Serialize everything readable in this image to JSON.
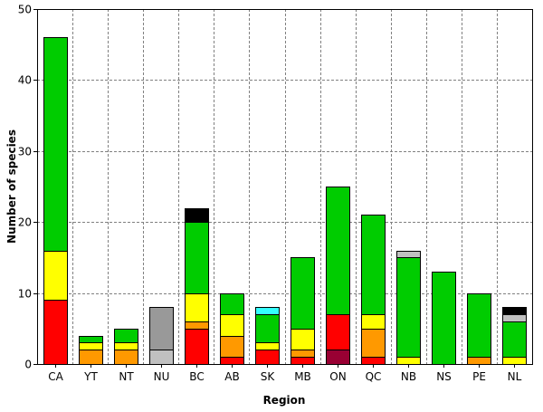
{
  "chart_data": {
    "type": "bar",
    "stacked": true,
    "title": "",
    "xlabel": "Region",
    "ylabel": "Number of species",
    "ylim": [
      0,
      50
    ],
    "yticks": [
      0,
      10,
      20,
      30,
      40,
      50
    ],
    "grid": true,
    "legend": "none",
    "categories": [
      "CA",
      "YT",
      "NT",
      "NU",
      "BC",
      "AB",
      "SK",
      "MB",
      "ON",
      "QC",
      "NB",
      "NS",
      "PE",
      "NL"
    ],
    "series": [
      {
        "color": "#990033",
        "values": [
          0,
          0,
          0,
          0,
          0,
          0,
          0,
          0,
          2,
          0,
          0,
          0,
          0,
          0
        ]
      },
      {
        "color": "#ff0000",
        "values": [
          9,
          0,
          0,
          0,
          5,
          1,
          2,
          1,
          5,
          1,
          0,
          0,
          0,
          0
        ]
      },
      {
        "color": "#ff9900",
        "values": [
          0,
          2,
          2,
          0,
          1,
          3,
          0,
          1,
          0,
          4,
          0,
          0,
          1,
          0
        ]
      },
      {
        "color": "#ffff00",
        "values": [
          7,
          1,
          1,
          0,
          4,
          3,
          1,
          3,
          0,
          2,
          1,
          0,
          0,
          1
        ]
      },
      {
        "color": "#00cc00",
        "values": [
          30,
          1,
          2,
          0,
          10,
          3,
          4,
          10,
          18,
          14,
          14,
          13,
          9,
          5
        ]
      },
      {
        "color": "#33ffff",
        "values": [
          0,
          0,
          0,
          0,
          0,
          0,
          1,
          0,
          0,
          0,
          0,
          0,
          0,
          0
        ]
      },
      {
        "color": "#c0c0c0",
        "values": [
          0,
          0,
          0,
          2,
          0,
          0,
          0,
          0,
          0,
          0,
          1,
          0,
          0,
          1
        ]
      },
      {
        "color": "#999999",
        "values": [
          0,
          0,
          0,
          6,
          0,
          0,
          0,
          0,
          0,
          0,
          0,
          0,
          0,
          0
        ]
      },
      {
        "color": "#000000",
        "values": [
          0,
          0,
          0,
          0,
          2,
          0,
          0,
          0,
          0,
          0,
          0,
          0,
          0,
          1
        ]
      }
    ]
  }
}
